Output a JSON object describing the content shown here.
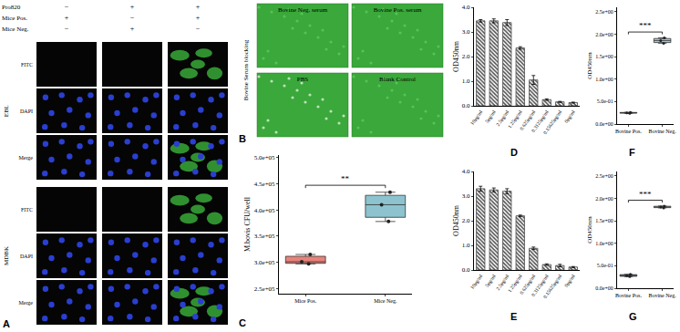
{
  "figure": {
    "panel_A": {
      "label": "A",
      "conditions": [
        {
          "name": "Pro820",
          "signs": [
            "−",
            "+",
            "+"
          ]
        },
        {
          "name": "Mice Pos.",
          "signs": [
            "+",
            "−",
            "+"
          ]
        },
        {
          "name": "Mice Neg.",
          "signs": [
            "−",
            "+",
            "−"
          ]
        }
      ],
      "groups": [
        "EBL",
        "MDBK"
      ],
      "channels": [
        "FITC",
        "DAPI",
        "Merge"
      ]
    },
    "panel_B": {
      "label": "B",
      "side_label": "Bovine Serum blocking",
      "images": [
        "Bovine Neg. serum",
        "Bovine Pos. serum",
        "PBS",
        "Blank Control"
      ]
    }
  },
  "chart_data": [
    {
      "panel": "C",
      "type": "box",
      "ylabel": "M.bovis CFU/well",
      "categories": [
        "Mice Pos.",
        "Mice Neg."
      ],
      "values": [
        [
          297000,
          301000,
          315000
        ],
        [
          378000,
          410000,
          434000
        ]
      ],
      "colors": [
        "#e8837a",
        "#8cc3cf"
      ],
      "ylim": [
        240000,
        505000
      ],
      "yticks": [
        {
          "value": 250000,
          "label": "2.5e+05"
        },
        {
          "value": 300000,
          "label": "3.0e+05"
        },
        {
          "value": 350000,
          "label": "3.5e+05"
        },
        {
          "value": 400000,
          "label": "4.0e+05"
        },
        {
          "value": 450000,
          "label": "4.5e+05"
        },
        {
          "value": 500000,
          "label": "5.0e+05"
        }
      ],
      "significance": "**"
    },
    {
      "panel": "D",
      "type": "bar",
      "ylabel": "OD450nm",
      "categories": [
        "10μg/ml",
        "5μg/ml",
        "2.5μg/ml",
        "1.25μg/ml",
        "0.625μg/ml",
        "0.3125μg/ml",
        "0.15625μg/ml",
        "0μg/ml"
      ],
      "values": [
        3.45,
        3.45,
        3.38,
        2.35,
        1.05,
        0.25,
        0.16,
        0.13
      ],
      "errors": [
        0.05,
        0.08,
        0.12,
        0.05,
        0.18,
        0.03,
        0.02,
        0.02
      ],
      "color": "#4d4d4d",
      "ylim": [
        0,
        4
      ],
      "yticks": [
        {
          "value": 0,
          "label": "0.0"
        },
        {
          "value": 1,
          "label": "1.0"
        },
        {
          "value": 2,
          "label": "2.0"
        },
        {
          "value": 3,
          "label": "3.0"
        },
        {
          "value": 4,
          "label": "4.0"
        }
      ]
    },
    {
      "panel": "E",
      "type": "bar",
      "ylabel": "OD450nm",
      "categories": [
        "10μg/ml",
        "5μg/ml",
        "2.5μg/ml",
        "1.25μg/ml",
        "0.625μg/ml",
        "0.3125μg/ml",
        "0.15625μg/ml",
        "0μg/ml"
      ],
      "values": [
        3.3,
        3.25,
        3.2,
        2.2,
        0.88,
        0.22,
        0.18,
        0.12
      ],
      "errors": [
        0.1,
        0.08,
        0.1,
        0.03,
        0.05,
        0.03,
        0.05,
        0.02
      ],
      "color": "#4d4d4d",
      "ylim": [
        0,
        4
      ],
      "yticks": [
        {
          "value": 0,
          "label": "0.0"
        },
        {
          "value": 1,
          "label": "1.0"
        },
        {
          "value": 2,
          "label": "2.0"
        },
        {
          "value": 3,
          "label": "3.0"
        },
        {
          "value": 4,
          "label": "4.0"
        }
      ]
    },
    {
      "panel": "F",
      "type": "box",
      "ylabel": "OD450nm",
      "categories": [
        "Bovine Pos.",
        "Bovine Neg."
      ],
      "values": [
        [
          0.24,
          0.25,
          0.26
        ],
        [
          1.8,
          1.86,
          1.92
        ]
      ],
      "colors": [
        "#6b7b8c",
        "#a9c4d6"
      ],
      "ylim": [
        0,
        2.6
      ],
      "yticks": [
        {
          "value": 0,
          "label": "0.0e+00"
        },
        {
          "value": 0.5,
          "label": "5.0e-01"
        },
        {
          "value": 1,
          "label": "1.0e+00"
        },
        {
          "value": 1.5,
          "label": "1.5e+00"
        },
        {
          "value": 2,
          "label": "2.0e+00"
        },
        {
          "value": 2.5,
          "label": "2.5e+00"
        }
      ],
      "significance": "***"
    },
    {
      "panel": "G",
      "type": "box",
      "ylabel": "OD450nm",
      "categories": [
        "Bovine Pos.",
        "Bovine Neg."
      ],
      "values": [
        [
          0.26,
          0.28,
          0.31
        ],
        [
          1.79,
          1.81,
          1.83
        ]
      ],
      "colors": [
        "#6b7b8c",
        "#a9c4d6"
      ],
      "ylim": [
        0,
        2.6
      ],
      "yticks": [
        {
          "value": 0,
          "label": "0.0e+00"
        },
        {
          "value": 0.5,
          "label": "5.0e-01"
        },
        {
          "value": 1,
          "label": "1.0e+00"
        },
        {
          "value": 1.5,
          "label": "1.5e+00"
        },
        {
          "value": 2,
          "label": "2.0e+00"
        },
        {
          "value": 2.5,
          "label": "2.5e+00"
        }
      ],
      "significance": "***"
    }
  ]
}
